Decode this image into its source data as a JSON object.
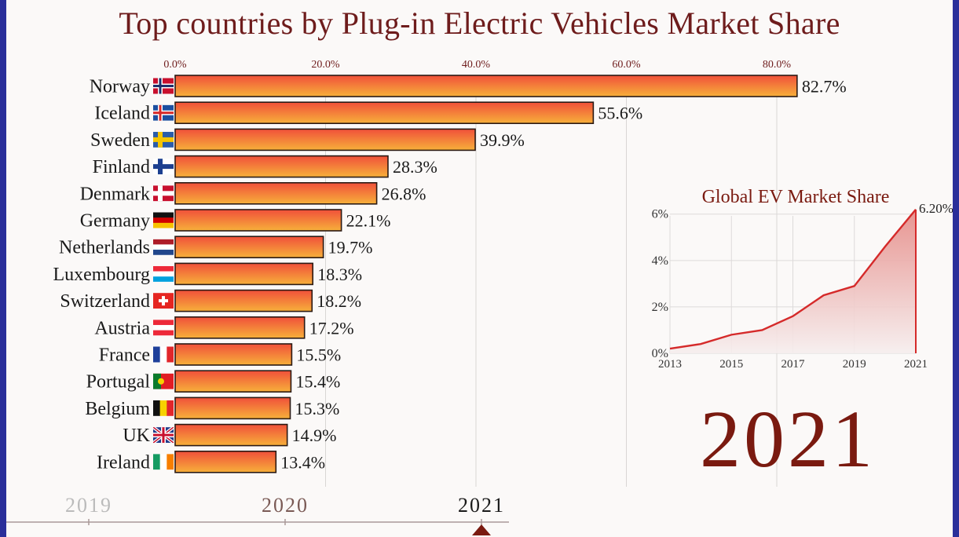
{
  "title": "Top countries by Plug-in Electric Vehicles Market Share",
  "big_year": "2021",
  "colors": {
    "bar_top": "#f0503a",
    "bar_bottom": "#f7b03a",
    "accent": "#6e1c1c",
    "frame": "#2a2f9a"
  },
  "chart_data": [
    {
      "type": "bar",
      "orientation": "horizontal",
      "title": "Top countries by Plug-in Electric Vehicles Market Share",
      "categories": [
        "Norway",
        "Iceland",
        "Sweden",
        "Finland",
        "Denmark",
        "Germany",
        "Netherlands",
        "Luxembourg",
        "Switzerland",
        "Austria",
        "France",
        "Portugal",
        "Belgium",
        "UK",
        "Ireland"
      ],
      "values": [
        82.7,
        55.6,
        39.9,
        28.3,
        26.8,
        22.1,
        19.7,
        18.3,
        18.2,
        17.2,
        15.5,
        15.4,
        15.3,
        14.9,
        13.4
      ],
      "value_labels": [
        "82.7%",
        "55.6%",
        "39.9%",
        "28.3%",
        "26.8%",
        "22.1%",
        "19.7%",
        "18.3%",
        "18.2%",
        "17.2%",
        "15.5%",
        "15.4%",
        "15.3%",
        "14.9%",
        "13.4%"
      ],
      "xlim": [
        0,
        83
      ],
      "xticks": [
        0,
        20,
        40,
        60,
        80
      ],
      "xtick_labels": [
        "0.0%",
        "20.0%",
        "40.0%",
        "60.0%",
        "80.0%"
      ],
      "axis_position": "top",
      "grid": true
    },
    {
      "type": "area",
      "title": "Global EV Market Share",
      "x": [
        2013,
        2014,
        2015,
        2016,
        2017,
        2018,
        2019,
        2020,
        2021
      ],
      "y": [
        0.2,
        0.4,
        0.8,
        1.0,
        1.6,
        2.5,
        2.9,
        4.6,
        6.2
      ],
      "end_label": "6.20%",
      "xticks": [
        2013,
        2015,
        2017,
        2019,
        2021
      ],
      "xtick_labels": [
        "2013",
        "2015",
        "2017",
        "2019",
        "2021"
      ],
      "yticks": [
        0,
        2,
        4,
        6
      ],
      "ytick_labels": [
        "0%",
        "2%",
        "4%",
        "6%"
      ],
      "xlim": [
        2013,
        2021
      ],
      "ylim": [
        0,
        6.6
      ],
      "grid": true
    }
  ],
  "timeline": {
    "labels": [
      "2019",
      "2020",
      "2021"
    ],
    "current": "2021"
  }
}
